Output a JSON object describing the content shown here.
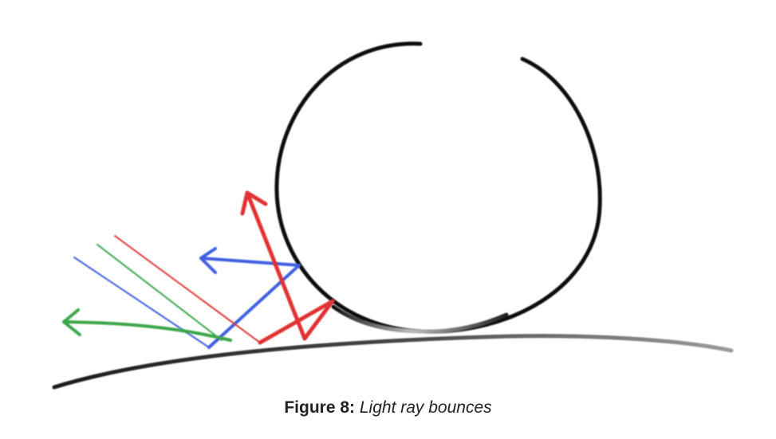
{
  "caption": {
    "label": "Figure 8:",
    "text": "Light ray bounces"
  },
  "colors": {
    "outline": "#111111",
    "red": "#e03030",
    "green": "#3aa64a",
    "blue": "#3f5fe0"
  }
}
